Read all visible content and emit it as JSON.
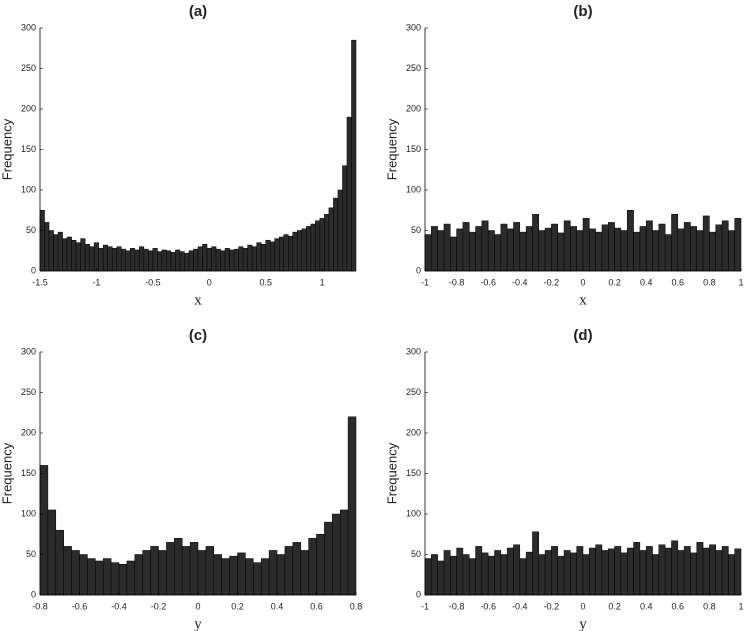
{
  "chart_data": [
    {
      "type": "histogram",
      "title": "(a)",
      "xlabel": "x",
      "ylabel": "Frequency",
      "color": "#2b2b2b",
      "bins": [
        -1.5,
        -1.46,
        -1.42,
        -1.38,
        -1.34,
        -1.3,
        -1.26,
        -1.22,
        -1.18,
        -1.14,
        -1.1,
        -1.06,
        -1.02,
        -0.98,
        -0.94,
        -0.9,
        -0.86,
        -0.82,
        -0.78,
        -0.74,
        -0.7,
        -0.66,
        -0.62,
        -0.58,
        -0.54,
        -0.5,
        -0.46,
        -0.42,
        -0.38,
        -0.34,
        -0.3,
        -0.26,
        -0.22,
        -0.18,
        -0.14,
        -0.1,
        -0.06,
        -0.02,
        0.02,
        0.06,
        0.1,
        0.14,
        0.18,
        0.22,
        0.26,
        0.3,
        0.34,
        0.38,
        0.42,
        0.46,
        0.5,
        0.54,
        0.58,
        0.62,
        0.66,
        0.7,
        0.74,
        0.78,
        0.82,
        0.86,
        0.9,
        0.94,
        0.98,
        1.02,
        1.06,
        1.1,
        1.14,
        1.18,
        1.22,
        1.26,
        1.3
      ],
      "counts": [
        75,
        60,
        50,
        45,
        48,
        40,
        42,
        38,
        35,
        40,
        33,
        30,
        35,
        28,
        32,
        30,
        28,
        30,
        27,
        25,
        28,
        26,
        30,
        27,
        25,
        28,
        24,
        26,
        25,
        23,
        26,
        24,
        22,
        25,
        27,
        30,
        33,
        28,
        30,
        27,
        25,
        28,
        26,
        27,
        30,
        28,
        32,
        30,
        35,
        33,
        38,
        36,
        40,
        42,
        45,
        43,
        48,
        50,
        52,
        55,
        58,
        62,
        65,
        70,
        78,
        90,
        100,
        130,
        190,
        285
      ],
      "xlim": [
        -1.5,
        1.3
      ],
      "ylim": [
        0,
        300
      ],
      "xticks": [
        -1.5,
        -1,
        -0.5,
        0,
        0.5,
        1
      ],
      "yticks": [
        0,
        50,
        100,
        150,
        200,
        250,
        300
      ]
    },
    {
      "type": "histogram",
      "title": "(b)",
      "xlabel": "x",
      "ylabel": "Frequency",
      "color": "#2b2b2b",
      "bins": [
        -1,
        -0.96,
        -0.92,
        -0.88,
        -0.84,
        -0.8,
        -0.76,
        -0.72,
        -0.68,
        -0.64,
        -0.6,
        -0.56,
        -0.52,
        -0.48,
        -0.44,
        -0.4,
        -0.36,
        -0.32,
        -0.28,
        -0.24,
        -0.2,
        -0.16,
        -0.12,
        -0.08,
        -0.04,
        0,
        0.04,
        0.08,
        0.12,
        0.16,
        0.2,
        0.24,
        0.28,
        0.32,
        0.36,
        0.4,
        0.44,
        0.48,
        0.52,
        0.56,
        0.6,
        0.64,
        0.68,
        0.72,
        0.76,
        0.8,
        0.84,
        0.88,
        0.92,
        0.96,
        1
      ],
      "counts": [
        45,
        55,
        50,
        58,
        42,
        52,
        60,
        48,
        55,
        62,
        50,
        45,
        58,
        52,
        60,
        48,
        55,
        70,
        50,
        53,
        58,
        47,
        62,
        55,
        50,
        65,
        52,
        48,
        57,
        60,
        53,
        50,
        75,
        48,
        55,
        62,
        50,
        58,
        45,
        70,
        52,
        60,
        55,
        50,
        68,
        48,
        57,
        62,
        50,
        65
      ],
      "xlim": [
        -1,
        1
      ],
      "ylim": [
        0,
        300
      ],
      "xticks": [
        -1,
        -0.8,
        -0.6,
        -0.4,
        -0.2,
        0,
        0.2,
        0.4,
        0.6,
        0.8,
        1
      ],
      "yticks": [
        0,
        50,
        100,
        150,
        200,
        250,
        300
      ]
    },
    {
      "type": "histogram",
      "title": "(c)",
      "xlabel": "y",
      "ylabel": "Frequency",
      "color": "#2b2b2b",
      "bins": [
        -0.8,
        -0.76,
        -0.72,
        -0.68,
        -0.64,
        -0.6,
        -0.56,
        -0.52,
        -0.48,
        -0.44,
        -0.4,
        -0.36,
        -0.32,
        -0.28,
        -0.24,
        -0.2,
        -0.16,
        -0.12,
        -0.08,
        -0.04,
        0,
        0.04,
        0.08,
        0.12,
        0.16,
        0.2,
        0.24,
        0.28,
        0.32,
        0.36,
        0.4,
        0.44,
        0.48,
        0.52,
        0.56,
        0.6,
        0.64,
        0.68,
        0.72,
        0.76,
        0.8
      ],
      "counts": [
        160,
        105,
        80,
        60,
        55,
        50,
        45,
        42,
        45,
        40,
        38,
        42,
        50,
        55,
        60,
        55,
        65,
        70,
        60,
        65,
        55,
        60,
        50,
        45,
        48,
        52,
        45,
        40,
        45,
        55,
        50,
        60,
        65,
        55,
        70,
        75,
        90,
        100,
        105,
        220
      ],
      "xlim": [
        -0.8,
        0.8
      ],
      "ylim": [
        0,
        300
      ],
      "xticks": [
        -0.8,
        -0.6,
        -0.4,
        -0.2,
        0,
        0.2,
        0.4,
        0.6,
        0.8
      ],
      "yticks": [
        0,
        50,
        100,
        150,
        200,
        250,
        300
      ]
    },
    {
      "type": "histogram",
      "title": "(d)",
      "xlabel": "y",
      "ylabel": "Frequency",
      "color": "#2b2b2b",
      "bins": [
        -1,
        -0.96,
        -0.92,
        -0.88,
        -0.84,
        -0.8,
        -0.76,
        -0.72,
        -0.68,
        -0.64,
        -0.6,
        -0.56,
        -0.52,
        -0.48,
        -0.44,
        -0.4,
        -0.36,
        -0.32,
        -0.28,
        -0.24,
        -0.2,
        -0.16,
        -0.12,
        -0.08,
        -0.04,
        0,
        0.04,
        0.08,
        0.12,
        0.16,
        0.2,
        0.24,
        0.28,
        0.32,
        0.36,
        0.4,
        0.44,
        0.48,
        0.52,
        0.56,
        0.6,
        0.64,
        0.68,
        0.72,
        0.76,
        0.8,
        0.84,
        0.88,
        0.92,
        0.96,
        1
      ],
      "counts": [
        45,
        50,
        42,
        55,
        48,
        58,
        50,
        45,
        60,
        52,
        48,
        55,
        50,
        58,
        62,
        45,
        53,
        78,
        50,
        55,
        60,
        48,
        55,
        52,
        60,
        50,
        58,
        62,
        55,
        57,
        60,
        52,
        58,
        65,
        55,
        60,
        50,
        62,
        58,
        67,
        55,
        60,
        52,
        65,
        58,
        62,
        55,
        60,
        50,
        57
      ],
      "xlim": [
        -1,
        1
      ],
      "ylim": [
        0,
        300
      ],
      "xticks": [
        -1,
        -0.8,
        -0.6,
        -0.4,
        -0.2,
        0,
        0.2,
        0.4,
        0.6,
        0.8,
        1
      ],
      "yticks": [
        0,
        50,
        100,
        150,
        200,
        250,
        300
      ]
    }
  ]
}
